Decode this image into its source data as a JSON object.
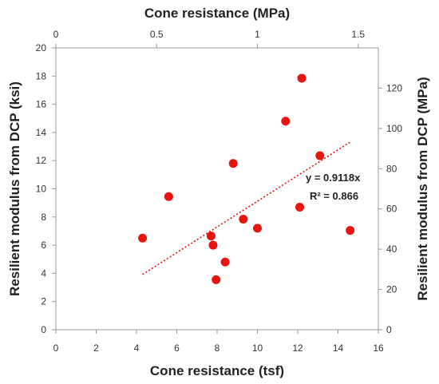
{
  "chart_data": {
    "type": "scatter",
    "title": "",
    "xlabel": "Cone resistance (tsf)",
    "x2label": "Cone resistance (MPa)",
    "ylabel": "Resilient modulus from DCP (ksi)",
    "y2label": "Resilient modulus from DCP (MPa)",
    "xlim": [
      0,
      16
    ],
    "ylim": [
      0,
      20
    ],
    "x2lim": [
      0,
      1.6
    ],
    "y2lim": [
      0,
      140
    ],
    "x_ticks": [
      0,
      2,
      4,
      6,
      8,
      10,
      12,
      14,
      16
    ],
    "y_ticks": [
      0,
      2,
      4,
      6,
      8,
      10,
      12,
      14,
      16,
      18,
      20
    ],
    "x2_ticks": [
      0,
      0.5,
      1,
      1.5
    ],
    "x2_tick_labels": [
      "0",
      "0.5",
      "1",
      "1.5"
    ],
    "y2_ticks": [
      0,
      20,
      40,
      60,
      80,
      100,
      120
    ],
    "grid": false,
    "legend": "none",
    "point_color": "#e8140e",
    "trend_color": "#e8140e",
    "points": [
      {
        "x": 4.3,
        "y": 6.5
      },
      {
        "x": 5.6,
        "y": 9.45
      },
      {
        "x": 7.7,
        "y": 6.65
      },
      {
        "x": 7.8,
        "y": 6.0
      },
      {
        "x": 7.95,
        "y": 3.55
      },
      {
        "x": 8.4,
        "y": 4.8
      },
      {
        "x": 8.8,
        "y": 11.8
      },
      {
        "x": 9.3,
        "y": 7.85
      },
      {
        "x": 10.0,
        "y": 7.2
      },
      {
        "x": 11.4,
        "y": 14.8
      },
      {
        "x": 12.1,
        "y": 8.7
      },
      {
        "x": 12.2,
        "y": 17.85
      },
      {
        "x": 13.1,
        "y": 12.35
      },
      {
        "x": 14.6,
        "y": 7.05
      }
    ],
    "trendline": {
      "style": "dotted",
      "slope": 0.9118,
      "x_range": [
        4.3,
        14.6
      ],
      "equation": "y = 0.9118x",
      "r_squared": "R² = 0.866"
    }
  }
}
